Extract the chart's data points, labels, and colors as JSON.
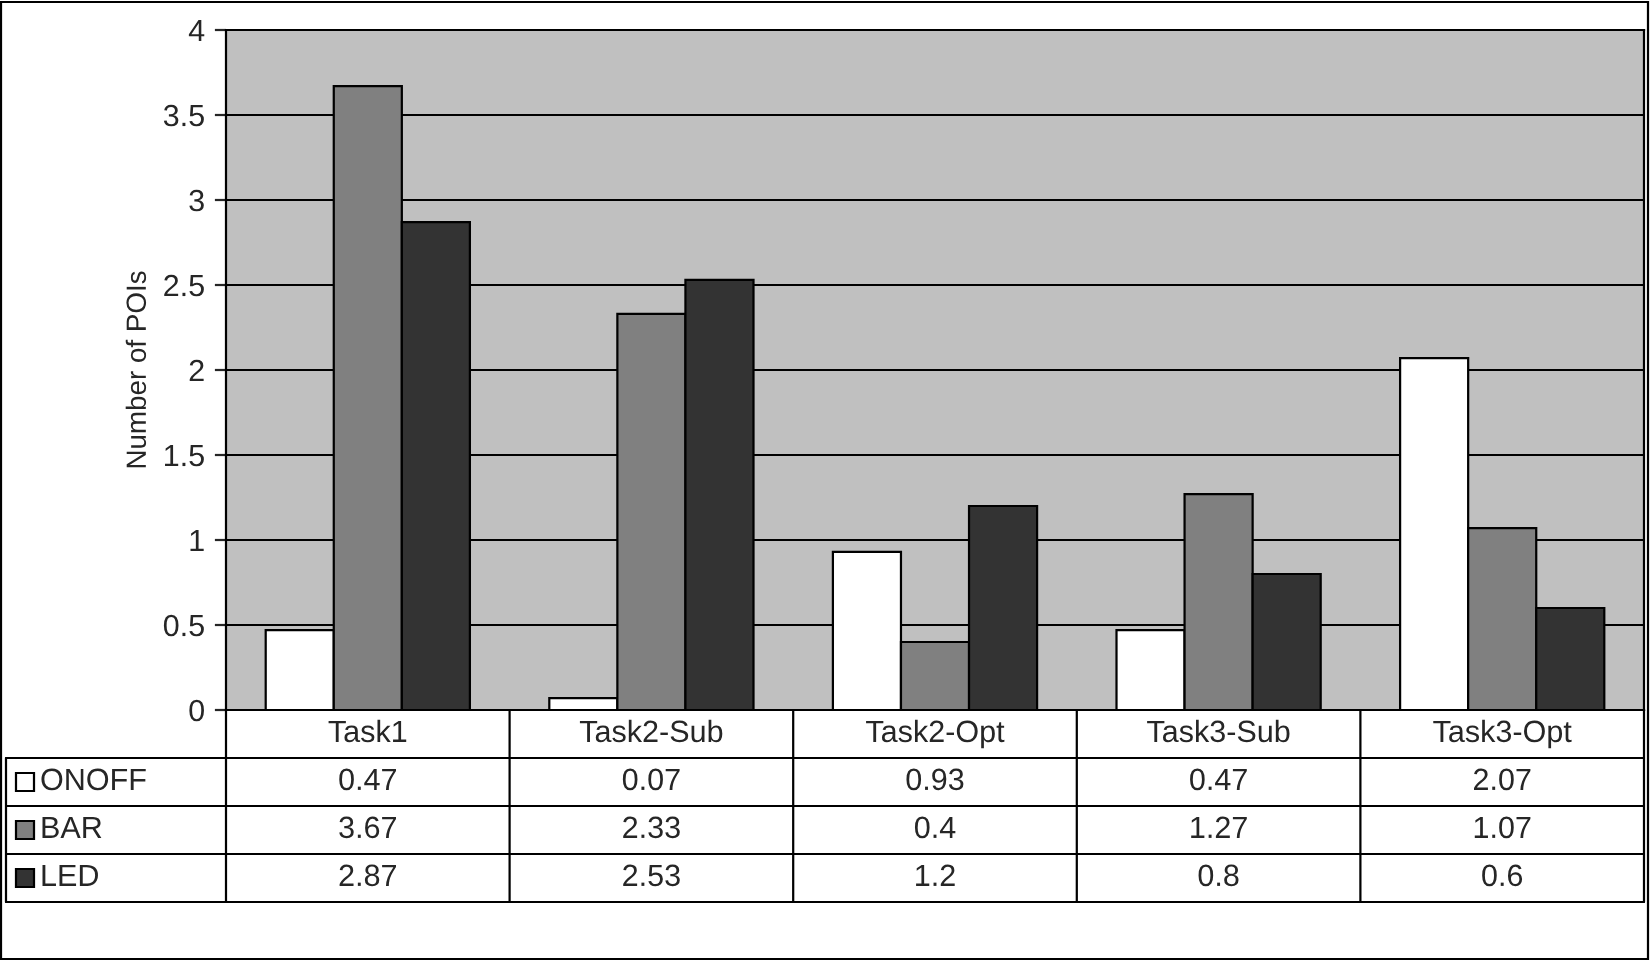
{
  "chart_data": {
    "type": "bar",
    "ylabel": "Number of POIs",
    "categories": [
      "Task1",
      "Task2-Sub",
      "Task2-Opt",
      "Task3-Sub",
      "Task3-Opt"
    ],
    "series": [
      {
        "name": "ONOFF",
        "color": "#ffffff",
        "values": [
          0.47,
          0.07,
          0.93,
          0.47,
          2.07
        ]
      },
      {
        "name": "BAR",
        "color": "#808080",
        "values": [
          3.67,
          2.33,
          0.4,
          1.27,
          1.07
        ]
      },
      {
        "name": "LED",
        "color": "#333333",
        "values": [
          2.87,
          2.53,
          1.2,
          0.8,
          0.6
        ]
      }
    ],
    "ylim": [
      0,
      4
    ],
    "yticks": [
      0,
      0.5,
      1,
      1.5,
      2,
      2.5,
      3,
      3.5,
      4
    ],
    "grid": "y",
    "data_labels": true,
    "legend": "bottom"
  }
}
